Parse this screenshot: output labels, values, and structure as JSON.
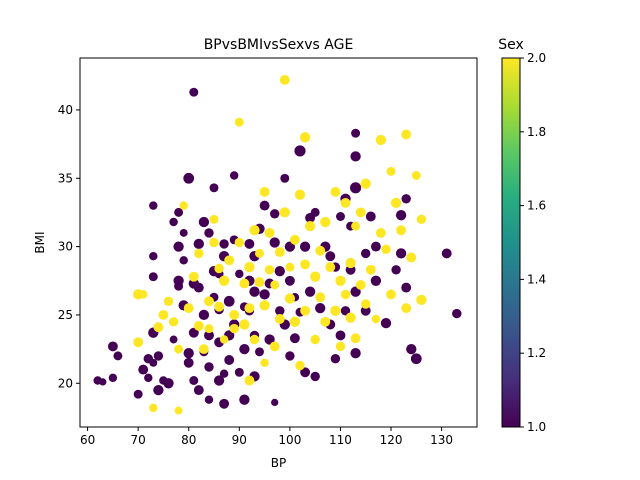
{
  "chart_data": {
    "type": "scatter",
    "title": "BPvsBMIvsSexvs AGE",
    "xlabel": "BP",
    "ylabel": "BMI",
    "xlim": [
      58.5,
      137
    ],
    "ylim": [
      16.8,
      43.8
    ],
    "x_ticks": [
      60,
      70,
      80,
      90,
      100,
      110,
      120,
      130
    ],
    "y_ticks": [
      20,
      25,
      30,
      35,
      40
    ],
    "grid": false,
    "color_encoding": "Sex",
    "size_encoding": "AGE",
    "colorbar": {
      "label": "Sex",
      "min": 1.0,
      "max": 2.0,
      "ticks": [
        "1.0",
        "1.2",
        "1.4",
        "1.6",
        "1.8",
        "2.0"
      ],
      "colormap": "viridis"
    },
    "series": [
      {
        "name": "1.0",
        "color": "#440154",
        "points": [
          [
            62,
            20.2,
            40
          ],
          [
            63,
            20.1,
            30
          ],
          [
            65,
            22.7,
            55
          ],
          [
            65,
            20.4,
            40
          ],
          [
            66,
            22,
            45
          ],
          [
            70,
            19.2,
            45
          ],
          [
            71,
            21,
            55
          ],
          [
            72,
            21.8,
            50
          ],
          [
            72,
            20.4,
            40
          ],
          [
            73,
            23.7,
            60
          ],
          [
            73,
            29.3,
            40
          ],
          [
            73,
            27.8,
            45
          ],
          [
            73,
            33,
            40
          ],
          [
            73,
            21.5,
            35
          ],
          [
            74,
            19.5,
            60
          ],
          [
            74,
            22,
            50
          ],
          [
            75,
            20.2,
            40
          ],
          [
            76,
            20,
            60
          ],
          [
            77,
            23.2,
            35
          ],
          [
            77,
            31.8,
            40
          ],
          [
            78,
            30,
            60
          ],
          [
            78,
            27.5,
            60
          ],
          [
            78,
            27.1,
            45
          ],
          [
            78,
            32.5,
            45
          ],
          [
            79,
            29,
            40
          ],
          [
            79,
            31,
            35
          ],
          [
            79,
            25.7,
            60
          ],
          [
            80,
            22.2,
            60
          ],
          [
            80,
            21.5,
            55
          ],
          [
            80,
            35,
            65
          ],
          [
            81,
            20.2,
            45
          ],
          [
            81,
            23.7,
            55
          ],
          [
            81,
            27.3,
            60
          ],
          [
            81,
            41.3,
            45
          ],
          [
            82,
            19.5,
            55
          ],
          [
            82,
            27,
            55
          ],
          [
            82,
            30.2,
            60
          ],
          [
            83,
            31.8,
            60
          ],
          [
            83,
            22.3,
            45
          ],
          [
            83,
            25,
            60
          ],
          [
            84,
            18.8,
            40
          ],
          [
            84,
            21.2,
            50
          ],
          [
            84,
            23.5,
            55
          ],
          [
            84,
            31,
            50
          ],
          [
            85,
            34.3,
            45
          ],
          [
            85,
            28.2,
            60
          ],
          [
            85,
            26.3,
            45
          ],
          [
            86,
            20.2,
            60
          ],
          [
            86,
            23,
            55
          ],
          [
            86,
            25.4,
            50
          ],
          [
            86,
            28,
            45
          ],
          [
            87,
            18.5,
            55
          ],
          [
            87,
            20.7,
            40
          ],
          [
            87,
            29.3,
            60
          ],
          [
            87,
            30.2,
            50
          ],
          [
            88,
            21.7,
            55
          ],
          [
            88,
            23.5,
            60
          ],
          [
            88,
            26,
            65
          ],
          [
            89,
            24.3,
            60
          ],
          [
            89,
            30.5,
            45
          ],
          [
            89,
            35.2,
            40
          ],
          [
            90,
            20.8,
            45
          ],
          [
            90,
            28,
            40
          ],
          [
            91,
            22.5,
            60
          ],
          [
            91,
            25.6,
            45
          ],
          [
            91,
            18.8,
            60
          ],
          [
            92,
            25.3,
            50
          ],
          [
            92,
            27.5,
            60
          ],
          [
            92,
            30.2,
            55
          ],
          [
            93,
            20.5,
            60
          ],
          [
            93,
            23.5,
            50
          ],
          [
            93,
            26.7,
            60
          ],
          [
            93,
            29.3,
            60
          ],
          [
            94,
            22.3,
            45
          ],
          [
            94,
            31.3,
            60
          ],
          [
            95,
            26.5,
            60
          ],
          [
            95,
            33,
            55
          ],
          [
            96,
            23.2,
            60
          ],
          [
            96,
            27.3,
            55
          ],
          [
            97,
            18.6,
            30
          ],
          [
            97,
            30.3,
            60
          ],
          [
            97,
            32.4,
            50
          ],
          [
            98,
            25.3,
            50
          ],
          [
            98,
            28.2,
            60
          ],
          [
            99,
            24.3,
            60
          ],
          [
            99,
            35,
            45
          ],
          [
            100,
            22,
            50
          ],
          [
            100,
            27.5,
            55
          ],
          [
            100,
            30,
            60
          ],
          [
            101,
            23.3,
            55
          ],
          [
            101,
            26.3,
            40
          ],
          [
            102,
            25.2,
            45
          ],
          [
            102,
            37,
            70
          ],
          [
            103,
            20.8,
            55
          ],
          [
            103,
            30,
            60
          ],
          [
            104,
            26.7,
            60
          ],
          [
            104,
            32.1,
            55
          ],
          [
            105,
            20.5,
            50
          ],
          [
            105,
            32.5,
            45
          ],
          [
            106,
            25.5,
            60
          ],
          [
            107,
            30,
            60
          ],
          [
            108,
            24.3,
            55
          ],
          [
            108,
            29.3,
            55
          ],
          [
            109,
            21.8,
            50
          ],
          [
            109,
            28.5,
            50
          ],
          [
            110,
            23.5,
            55
          ],
          [
            110,
            32.2,
            45
          ],
          [
            111,
            25.3,
            50
          ],
          [
            111,
            33.5,
            60
          ],
          [
            112,
            28.3,
            55
          ],
          [
            112,
            31.5,
            45
          ],
          [
            113,
            22.2,
            60
          ],
          [
            113,
            26.7,
            60
          ],
          [
            113,
            38.3,
            45
          ],
          [
            113,
            36.6,
            60
          ],
          [
            113,
            34.3,
            70
          ],
          [
            115,
            25.3,
            55
          ],
          [
            115,
            29.5,
            50
          ],
          [
            116,
            32.2,
            55
          ],
          [
            117,
            30,
            55
          ],
          [
            117,
            27.5,
            60
          ],
          [
            119,
            24.4,
            60
          ],
          [
            121,
            28.3,
            50
          ],
          [
            122,
            29.5,
            60
          ],
          [
            122,
            32.3,
            60
          ],
          [
            123,
            27,
            55
          ],
          [
            123,
            33.5,
            50
          ],
          [
            124,
            22.5,
            60
          ],
          [
            125,
            21.8,
            65
          ],
          [
            131,
            29.5,
            55
          ],
          [
            133,
            25.1,
            50
          ]
        ]
      },
      {
        "name": "2.0",
        "color": "#fde725",
        "points": [
          [
            70,
            26.5,
            60
          ],
          [
            70,
            23,
            55
          ],
          [
            71,
            26.5,
            40
          ],
          [
            73,
            18.2,
            40
          ],
          [
            74,
            24.1,
            55
          ],
          [
            75,
            25,
            55
          ],
          [
            76,
            26,
            50
          ],
          [
            77,
            24.5,
            50
          ],
          [
            78,
            18,
            35
          ],
          [
            78,
            22.5,
            45
          ],
          [
            79,
            33,
            40
          ],
          [
            80,
            25.5,
            55
          ],
          [
            81,
            27.8,
            55
          ],
          [
            82,
            24.2,
            55
          ],
          [
            82,
            29.5,
            50
          ],
          [
            83,
            22.5,
            55
          ],
          [
            84,
            24,
            45
          ],
          [
            84,
            26,
            55
          ],
          [
            85,
            32,
            45
          ],
          [
            85,
            30.3,
            50
          ],
          [
            86,
            25.6,
            55
          ],
          [
            86,
            28.4,
            50
          ],
          [
            87,
            27.5,
            60
          ],
          [
            87,
            23.2,
            40
          ],
          [
            88,
            29,
            55
          ],
          [
            89,
            24,
            50
          ],
          [
            89,
            25,
            55
          ],
          [
            90,
            39.1,
            45
          ],
          [
            90,
            30.3,
            50
          ],
          [
            91,
            27.3,
            55
          ],
          [
            91,
            24.3,
            60
          ],
          [
            92,
            20.2,
            55
          ],
          [
            92,
            25.5,
            55
          ],
          [
            92,
            28.5,
            60
          ],
          [
            93,
            23.2,
            50
          ],
          [
            93,
            31.2,
            60
          ],
          [
            94,
            27.4,
            55
          ],
          [
            94,
            29.5,
            45
          ],
          [
            95,
            21.5,
            40
          ],
          [
            95,
            25.7,
            60
          ],
          [
            95,
            34,
            55
          ],
          [
            96,
            28.3,
            50
          ],
          [
            96,
            31,
            55
          ],
          [
            97,
            22.7,
            55
          ],
          [
            97,
            27.2,
            45
          ],
          [
            98,
            24.7,
            55
          ],
          [
            98,
            29.6,
            55
          ],
          [
            99,
            32.5,
            60
          ],
          [
            99,
            42.2,
            55
          ],
          [
            100,
            26.2,
            60
          ],
          [
            100,
            28.5,
            45
          ],
          [
            101,
            24.5,
            60
          ],
          [
            101,
            30.5,
            55
          ],
          [
            102,
            21.3,
            50
          ],
          [
            102,
            33.8,
            60
          ],
          [
            103,
            28.7,
            55
          ],
          [
            103,
            25.3,
            55
          ],
          [
            103,
            38,
            60
          ],
          [
            104,
            31.5,
            60
          ],
          [
            105,
            27.8,
            60
          ],
          [
            105,
            23.2,
            50
          ],
          [
            106,
            29.7,
            55
          ],
          [
            106,
            26.3,
            55
          ],
          [
            107,
            24.5,
            55
          ],
          [
            107,
            31.8,
            60
          ],
          [
            108,
            28.5,
            55
          ],
          [
            109,
            25.3,
            60
          ],
          [
            109,
            34,
            55
          ],
          [
            110,
            22.7,
            50
          ],
          [
            110,
            27.5,
            60
          ],
          [
            111,
            33.2,
            55
          ],
          [
            111,
            26.5,
            50
          ],
          [
            112,
            28.8,
            60
          ],
          [
            112,
            24.8,
            60
          ],
          [
            113,
            23.3,
            55
          ],
          [
            113,
            31.5,
            45
          ],
          [
            114,
            27.2,
            55
          ],
          [
            114,
            32.5,
            55
          ],
          [
            115,
            34.6,
            60
          ],
          [
            115,
            25.8,
            50
          ],
          [
            116,
            28.3,
            55
          ],
          [
            117,
            24.7,
            40
          ],
          [
            118,
            31,
            55
          ],
          [
            118,
            37.8,
            60
          ],
          [
            119,
            29.8,
            50
          ],
          [
            120,
            35.5,
            45
          ],
          [
            120,
            26.5,
            55
          ],
          [
            121,
            33.2,
            60
          ],
          [
            122,
            31.2,
            55
          ],
          [
            123,
            25.5,
            55
          ],
          [
            123,
            38.2,
            55
          ],
          [
            124,
            29.2,
            55
          ],
          [
            125,
            35.2,
            45
          ],
          [
            126,
            26.1,
            60
          ],
          [
            126,
            32,
            50
          ]
        ]
      }
    ]
  }
}
